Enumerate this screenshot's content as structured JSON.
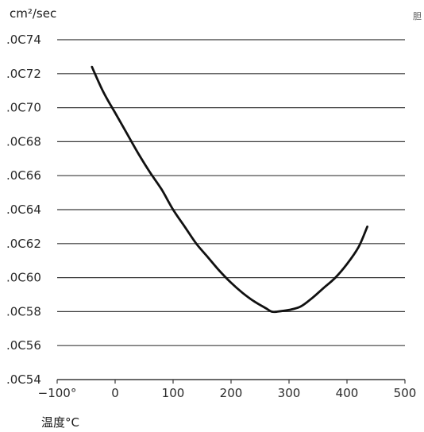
{
  "chart_data": {
    "type": "line",
    "ylabel": "cm²/sec",
    "xlabel": "温度°C",
    "corner_mark": "胆",
    "xlim": [
      -100,
      500
    ],
    "ylim": [
      0.0054,
      0.0074
    ],
    "x_ticks": [
      {
        "value": -100,
        "label": "−100°"
      },
      {
        "value": 0,
        "label": "0"
      },
      {
        "value": 100,
        "label": "100"
      },
      {
        "value": 200,
        "label": "200"
      },
      {
        "value": 300,
        "label": "300"
      },
      {
        "value": 400,
        "label": "400"
      },
      {
        "value": 500,
        "label": "500"
      }
    ],
    "y_ticks": [
      {
        "value": 0.0054,
        "label": ".0C54"
      },
      {
        "value": 0.0056,
        "label": ".0C56"
      },
      {
        "value": 0.0058,
        "label": ".0C58"
      },
      {
        "value": 0.006,
        "label": ".0C60"
      },
      {
        "value": 0.0062,
        "label": ".0C62"
      },
      {
        "value": 0.0064,
        "label": ".0C64"
      },
      {
        "value": 0.0066,
        "label": ".0C66"
      },
      {
        "value": 0.0068,
        "label": ".0C68"
      },
      {
        "value": 0.007,
        "label": ".0C70"
      },
      {
        "value": 0.0072,
        "label": ".0C72"
      },
      {
        "value": 0.0074,
        "label": ".0C74"
      }
    ],
    "grid": "horizontal",
    "series": [
      {
        "color": "#111111",
        "x": [
          -40,
          -20,
          0,
          20,
          40,
          60,
          80,
          100,
          120,
          140,
          160,
          180,
          200,
          220,
          240,
          260,
          270,
          280,
          300,
          320,
          340,
          360,
          380,
          400,
          420,
          435
        ],
        "y": [
          0.00724,
          0.00709,
          0.00697,
          0.00685,
          0.00673,
          0.00662,
          0.00652,
          0.0064,
          0.0063,
          0.0062,
          0.00612,
          0.00604,
          0.00597,
          0.00591,
          0.00586,
          0.00582,
          0.0058,
          0.0058,
          0.00581,
          0.00583,
          0.00588,
          0.00594,
          0.006,
          0.00608,
          0.00618,
          0.0063
        ]
      }
    ]
  }
}
